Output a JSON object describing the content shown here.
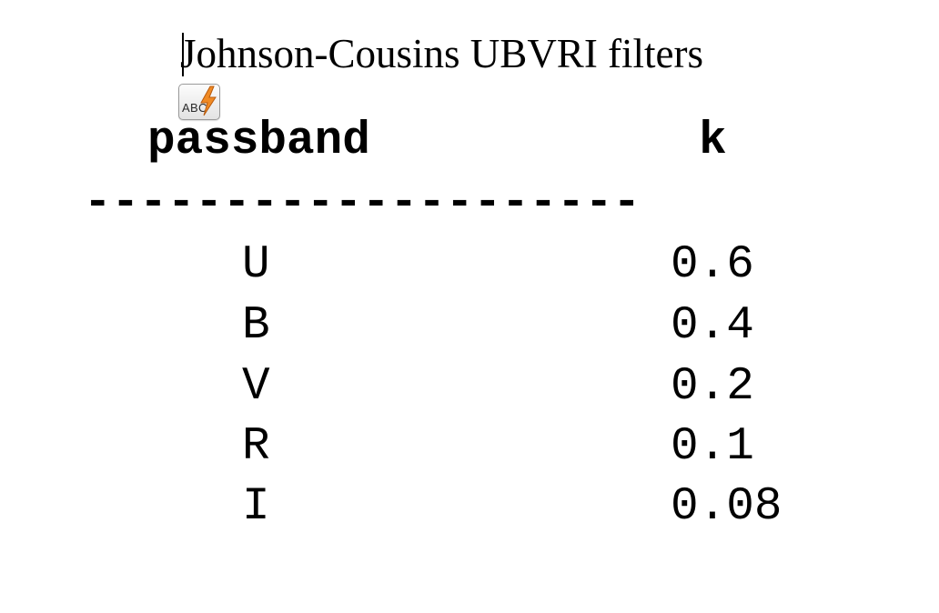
{
  "document": {
    "title": "Johnson-Cousins UBVRI filters"
  },
  "spelling_icon": {
    "label": "ABC",
    "icon": "spellcheck-lightning-icon",
    "accent": "#f08a24"
  },
  "table": {
    "columns": [
      "passband",
      "k"
    ],
    "rule": "--------------------",
    "rows": [
      {
        "passband": "U",
        "k": "0.6"
      },
      {
        "passband": "B",
        "k": "0.4"
      },
      {
        "passband": "V",
        "k": "0.2"
      },
      {
        "passband": "R",
        "k": "0.1"
      },
      {
        "passband": "I",
        "k": "0.08"
      }
    ]
  }
}
